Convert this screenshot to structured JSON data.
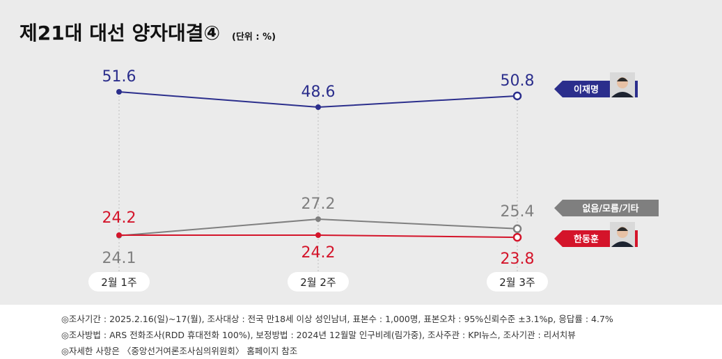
{
  "title": "제21대 대선 양자대결④",
  "unit": "(단위 : %)",
  "colors": {
    "lee": "#2b2e8c",
    "none": "#7f7f7f",
    "han": "#d4142a",
    "background": "#ebebeb"
  },
  "chart_data": {
    "type": "line",
    "categories": [
      "2월 1주",
      "2월 2주",
      "2월 3주"
    ],
    "series": [
      {
        "key": "lee",
        "name": "이재명",
        "values": [
          51.6,
          48.6,
          50.8
        ],
        "color": "#2b2e8c"
      },
      {
        "key": "none",
        "name": "없음/모름/기타",
        "values": [
          24.1,
          27.2,
          25.4
        ],
        "color": "#7f7f7f"
      },
      {
        "key": "han",
        "name": "한동훈",
        "values": [
          24.2,
          24.2,
          23.8
        ],
        "color": "#d4142a"
      }
    ],
    "legend": "right",
    "grid": false
  },
  "notes": [
    "◎조사기간 : 2025.2.16(일)~17(월), 조사대상 : 전국 만18세 이상 성인남녀, 표본수 : 1,000명, 표본오차 : 95%신뢰수준 ±3.1%p, 응답률 : 4.7%",
    "◎조사방법 : ARS 전화조사(RDD 휴대전화 100%), 보정방법 : 2024년 12월말 인구비례(림가중), 조사주관 : KPI뉴스, 조사기관 : 리서치뷰",
    "◎자세한 사항은 〈중앙선거여론조사심의위원회〉 홈페이지 참조"
  ]
}
